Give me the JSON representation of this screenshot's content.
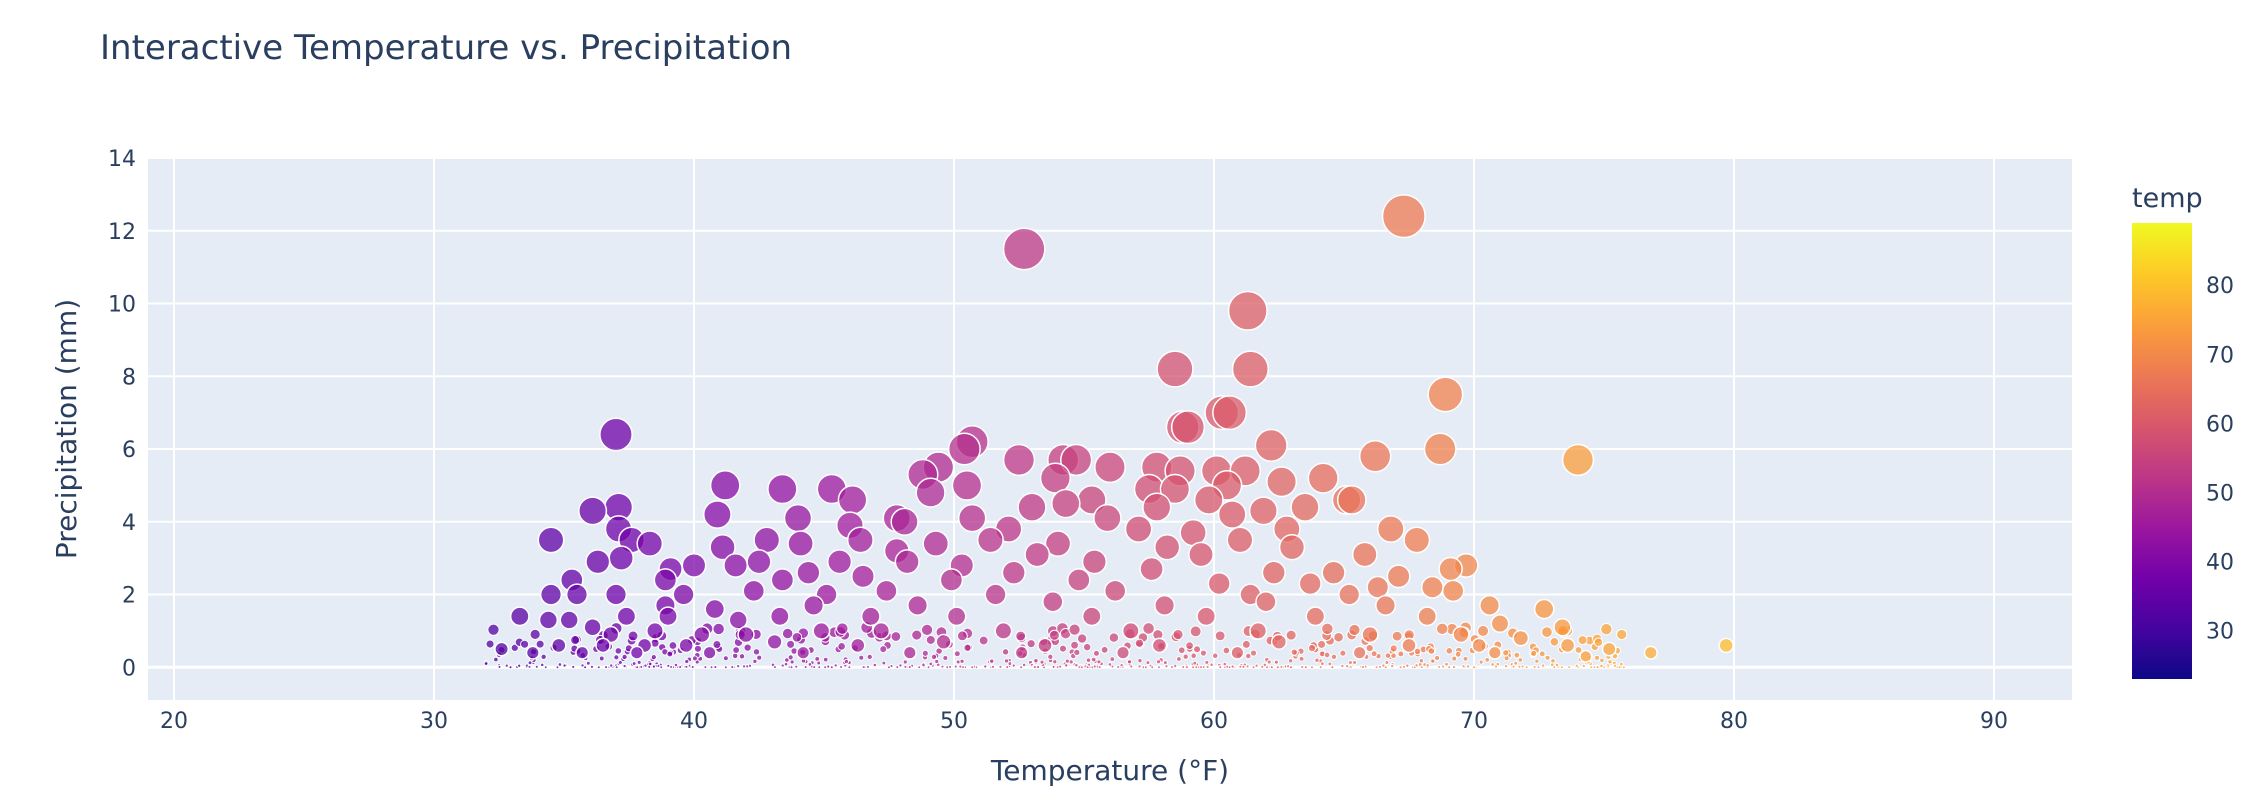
{
  "chart_data": {
    "type": "scatter",
    "title": "Interactive Temperature vs. Precipitation",
    "xlabel": "Temperature (°F)",
    "ylabel": "Precipitation (mm)",
    "xlim": [
      19,
      93
    ],
    "ylim": [
      -0.9,
      14
    ],
    "x_ticks": [
      20,
      30,
      40,
      50,
      60,
      70,
      80,
      90
    ],
    "y_ticks": [
      0,
      2,
      4,
      6,
      8,
      10,
      12,
      14
    ],
    "grid": true,
    "marker_size_encodes": "precipitation",
    "colorbar": {
      "title": "temp",
      "range": [
        23,
        89
      ],
      "ticks": [
        30,
        40,
        50,
        60,
        70,
        80
      ],
      "colorscale": [
        "#0d0887",
        "#46039f",
        "#7201a8",
        "#9c179e",
        "#bd3786",
        "#d8576b",
        "#ed7953",
        "#fb9f3a",
        "#fdca26",
        "#f0f921"
      ]
    },
    "points": [
      [
        52.7,
        11.5
      ],
      [
        67.3,
        12.4
      ],
      [
        61.3,
        9.8
      ],
      [
        61.4,
        8.2
      ],
      [
        58.5,
        8.2
      ],
      [
        68.9,
        7.5
      ],
      [
        60.3,
        7.0
      ],
      [
        60.6,
        7.0
      ],
      [
        58.8,
        6.6
      ],
      [
        59.0,
        6.6
      ],
      [
        37.0,
        6.4
      ],
      [
        50.7,
        6.2
      ],
      [
        50.4,
        6.0
      ],
      [
        62.2,
        6.1
      ],
      [
        68.7,
        6.0
      ],
      [
        74.0,
        5.7
      ],
      [
        66.2,
        5.8
      ],
      [
        52.5,
        5.7
      ],
      [
        54.2,
        5.7
      ],
      [
        54.7,
        5.7
      ],
      [
        49.4,
        5.5
      ],
      [
        48.8,
        5.3
      ],
      [
        56.0,
        5.5
      ],
      [
        57.8,
        5.5
      ],
      [
        58.7,
        5.4
      ],
      [
        60.1,
        5.4
      ],
      [
        61.2,
        5.4
      ],
      [
        64.2,
        5.2
      ],
      [
        62.6,
        5.1
      ],
      [
        41.2,
        5.0
      ],
      [
        43.4,
        4.9
      ],
      [
        45.3,
        4.9
      ],
      [
        50.5,
        5.0
      ],
      [
        53.9,
        5.2
      ],
      [
        57.5,
        4.9
      ],
      [
        58.5,
        4.9
      ],
      [
        60.5,
        5.0
      ],
      [
        49.1,
        4.8
      ],
      [
        55.3,
        4.6
      ],
      [
        59.8,
        4.6
      ],
      [
        65.1,
        4.6
      ],
      [
        65.3,
        4.6
      ],
      [
        46.1,
        4.6
      ],
      [
        53.0,
        4.4
      ],
      [
        54.3,
        4.5
      ],
      [
        57.8,
        4.4
      ],
      [
        61.9,
        4.3
      ],
      [
        63.5,
        4.4
      ],
      [
        37.1,
        4.4
      ],
      [
        36.1,
        4.3
      ],
      [
        40.9,
        4.2
      ],
      [
        47.8,
        4.1
      ],
      [
        44.0,
        4.1
      ],
      [
        50.7,
        4.1
      ],
      [
        55.9,
        4.1
      ],
      [
        60.7,
        4.2
      ],
      [
        37.1,
        3.8
      ],
      [
        46.0,
        3.9
      ],
      [
        48.1,
        4.0
      ],
      [
        52.1,
        3.8
      ],
      [
        57.1,
        3.8
      ],
      [
        59.2,
        3.7
      ],
      [
        62.8,
        3.8
      ],
      [
        66.8,
        3.8
      ],
      [
        67.8,
        3.5
      ],
      [
        34.5,
        3.5
      ],
      [
        37.6,
        3.5
      ],
      [
        38.3,
        3.4
      ],
      [
        42.8,
        3.5
      ],
      [
        44.1,
        3.4
      ],
      [
        46.4,
        3.5
      ],
      [
        49.3,
        3.4
      ],
      [
        51.4,
        3.5
      ],
      [
        54.0,
        3.4
      ],
      [
        58.2,
        3.3
      ],
      [
        61.0,
        3.5
      ],
      [
        63.0,
        3.3
      ],
      [
        41.1,
        3.3
      ],
      [
        47.8,
        3.2
      ],
      [
        53.2,
        3.1
      ],
      [
        59.5,
        3.1
      ],
      [
        37.2,
        3.0
      ],
      [
        36.3,
        2.9
      ],
      [
        40.0,
        2.8
      ],
      [
        42.5,
        2.9
      ],
      [
        45.6,
        2.9
      ],
      [
        48.2,
        2.9
      ],
      [
        50.3,
        2.8
      ],
      [
        55.4,
        2.9
      ],
      [
        65.8,
        3.1
      ],
      [
        69.7,
        2.8
      ],
      [
        69.1,
        2.7
      ],
      [
        39.1,
        2.7
      ],
      [
        41.6,
        2.8
      ],
      [
        44.4,
        2.6
      ],
      [
        52.3,
        2.6
      ],
      [
        57.6,
        2.7
      ],
      [
        62.3,
        2.6
      ],
      [
        64.6,
        2.6
      ],
      [
        67.1,
        2.5
      ],
      [
        35.3,
        2.4
      ],
      [
        38.9,
        2.4
      ],
      [
        43.4,
        2.4
      ],
      [
        46.5,
        2.5
      ],
      [
        49.9,
        2.4
      ],
      [
        54.8,
        2.4
      ],
      [
        60.2,
        2.3
      ],
      [
        63.7,
        2.3
      ],
      [
        66.3,
        2.2
      ],
      [
        68.4,
        2.2
      ],
      [
        34.5,
        2.0
      ],
      [
        35.5,
        2.0
      ],
      [
        37.0,
        2.0
      ],
      [
        39.6,
        2.0
      ],
      [
        42.3,
        2.1
      ],
      [
        45.1,
        2.0
      ],
      [
        47.4,
        2.1
      ],
      [
        51.6,
        2.0
      ],
      [
        56.2,
        2.1
      ],
      [
        61.4,
        2.0
      ],
      [
        65.2,
        2.0
      ],
      [
        69.2,
        2.1
      ],
      [
        70.6,
        1.7
      ],
      [
        72.7,
        1.6
      ],
      [
        38.9,
        1.7
      ],
      [
        40.8,
        1.6
      ],
      [
        44.6,
        1.7
      ],
      [
        48.6,
        1.7
      ],
      [
        53.8,
        1.8
      ],
      [
        58.1,
        1.7
      ],
      [
        62.0,
        1.8
      ],
      [
        66.6,
        1.7
      ],
      [
        33.3,
        1.4
      ],
      [
        34.4,
        1.3
      ],
      [
        35.2,
        1.3
      ],
      [
        36.1,
        1.1
      ],
      [
        37.4,
        1.4
      ],
      [
        39.0,
        1.4
      ],
      [
        41.7,
        1.3
      ],
      [
        43.3,
        1.4
      ],
      [
        46.8,
        1.4
      ],
      [
        50.1,
        1.4
      ],
      [
        55.3,
        1.4
      ],
      [
        59.7,
        1.4
      ],
      [
        63.9,
        1.4
      ],
      [
        68.2,
        1.4
      ],
      [
        71.0,
        1.2
      ],
      [
        73.4,
        1.1
      ],
      [
        36.8,
        0.9
      ],
      [
        38.5,
        1.0
      ],
      [
        40.3,
        0.9
      ],
      [
        42.0,
        0.9
      ],
      [
        44.9,
        1.0
      ],
      [
        47.2,
        1.0
      ],
      [
        51.9,
        1.0
      ],
      [
        56.8,
        1.0
      ],
      [
        61.7,
        1.0
      ],
      [
        66.0,
        0.9
      ],
      [
        69.5,
        0.9
      ],
      [
        71.8,
        0.8
      ],
      [
        32.6,
        0.5
      ],
      [
        34.8,
        0.6
      ],
      [
        36.5,
        0.6
      ],
      [
        38.1,
        0.6
      ],
      [
        39.7,
        0.6
      ],
      [
        43.1,
        0.7
      ],
      [
        46.3,
        0.6
      ],
      [
        49.6,
        0.7
      ],
      [
        53.5,
        0.6
      ],
      [
        57.9,
        0.6
      ],
      [
        62.5,
        0.7
      ],
      [
        67.5,
        0.6
      ],
      [
        70.2,
        0.6
      ],
      [
        73.6,
        0.6
      ],
      [
        79.7,
        0.6
      ],
      [
        75.2,
        0.5
      ],
      [
        76.8,
        0.4
      ],
      [
        33.8,
        0.4
      ],
      [
        35.7,
        0.4
      ],
      [
        37.8,
        0.4
      ],
      [
        40.6,
        0.4
      ],
      [
        44.2,
        0.4
      ],
      [
        48.3,
        0.4
      ],
      [
        52.6,
        0.4
      ],
      [
        56.5,
        0.4
      ],
      [
        60.9,
        0.4
      ],
      [
        65.6,
        0.4
      ],
      [
        70.8,
        0.4
      ],
      [
        74.3,
        0.3
      ]
    ]
  }
}
